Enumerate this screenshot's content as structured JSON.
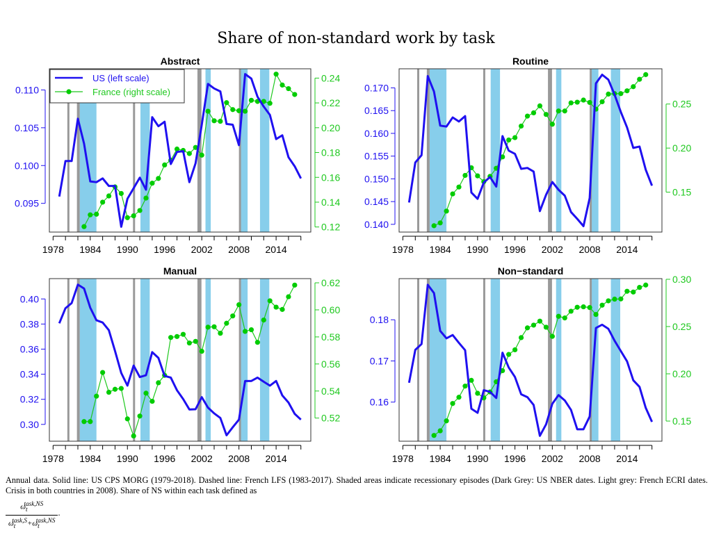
{
  "figure_title": "Share of non-standard work by task",
  "legend": {
    "us": "US (left scale)",
    "france": "France (right scale)"
  },
  "colors": {
    "us": "#1f10f0",
    "france": "#1ec81e",
    "france_point": "#00cc00",
    "us_recession": "#999999",
    "fr_recession": "#87ceeb"
  },
  "caption": {
    "text": "Annual data. Solid line: US CPS MORG (1979-2018). Dashed line: French LFS (1983-2017). Shaded areas indicate recessionary episodes (Dark Grey: US NBER dates. Light grey: French ECRI dates. Crisis in both countries in 2008). Share of NS within each task defined as",
    "formula_num": "ω_t^{task,NS}",
    "formula_den": "ω_t^{task,S} + ω_t^{task,NS}",
    "end": "."
  },
  "chart_data": [
    {
      "type": "line",
      "title": "Abstract",
      "xlim": [
        1977.4,
        2019.6
      ],
      "xticks": [
        1978,
        1984,
        1990,
        1996,
        2002,
        2008,
        2014
      ],
      "ylim_left": [
        0.0912,
        0.1128
      ],
      "yticks_left": [
        "0.095",
        "0.100",
        "0.105",
        "0.110"
      ],
      "ylim_right": [
        0.1159,
        0.2475
      ],
      "yticks_right": [
        "0.12",
        "0.14",
        "0.16",
        "0.18",
        "0.20",
        "0.22",
        "0.24"
      ],
      "legend": "top-left",
      "us": {
        "start": 1979,
        "values": [
          0.0959,
          0.1006,
          0.1006,
          0.1062,
          0.1029,
          0.0979,
          0.0978,
          0.0983,
          0.0973,
          0.0973,
          0.0919,
          0.0956,
          0.097,
          0.0984,
          0.0968,
          0.1064,
          0.1052,
          0.1058,
          0.1002,
          0.1018,
          0.1019,
          0.0978,
          0.1003,
          0.1054,
          0.1108,
          0.1102,
          0.1098,
          0.1055,
          0.1054,
          0.1027,
          0.1121,
          0.1115,
          0.1091,
          0.1078,
          0.1067,
          0.1035,
          0.104,
          0.1011,
          0.0999,
          0.0983
        ]
      },
      "france": {
        "start": 1983,
        "values": [
          0.1203,
          0.1298,
          0.1303,
          0.14,
          0.145,
          0.1523,
          0.147,
          0.1275,
          0.129,
          0.1333,
          0.1433,
          0.1553,
          0.1591,
          0.17,
          0.1738,
          0.1828,
          0.1817,
          0.1792,
          0.1841,
          0.1779,
          0.2133,
          0.2056,
          0.2052,
          0.2202,
          0.2146,
          0.2137,
          0.2133,
          0.2221,
          0.2212,
          0.2212,
          0.2197,
          0.2432,
          0.2344,
          0.2315,
          0.2268
        ]
      }
    },
    {
      "type": "line",
      "title": "Routine",
      "xlim": [
        1977.4,
        2019.6
      ],
      "xticks": [
        1978,
        1984,
        1990,
        1996,
        2002,
        2008,
        2014
      ],
      "ylim_left": [
        0.1383,
        0.1742
      ],
      "yticks_left": [
        "0.140",
        "0.145",
        "0.150",
        "0.155",
        "0.160",
        "0.165",
        "0.170"
      ],
      "ylim_right": [
        0.1047,
        0.29
      ],
      "yticks_right": [
        "0.15",
        "0.20",
        "0.25"
      ],
      "us": {
        "start": 1979,
        "values": [
          0.1448,
          0.1536,
          0.1552,
          0.1726,
          0.1692,
          0.1617,
          0.1615,
          0.1635,
          0.1626,
          0.1638,
          0.147,
          0.1456,
          0.1492,
          0.1504,
          0.1483,
          0.1594,
          0.1562,
          0.1555,
          0.1522,
          0.1524,
          0.1516,
          0.1429,
          0.1465,
          0.1493,
          0.1476,
          0.1463,
          0.1427,
          0.1412,
          0.1396,
          0.1458,
          0.171,
          0.1729,
          0.1718,
          0.1685,
          0.1647,
          0.1613,
          0.1568,
          0.1571,
          0.152,
          0.1485
        ]
      },
      "france": {
        "start": 1983,
        "values": [
          0.1119,
          0.1151,
          0.1285,
          0.148,
          0.1558,
          0.169,
          0.1777,
          0.1685,
          0.1619,
          0.1679,
          0.1771,
          0.19,
          0.2092,
          0.2119,
          0.225,
          0.2363,
          0.24,
          0.2479,
          0.2382,
          0.2271,
          0.2421,
          0.2421,
          0.2513,
          0.2521,
          0.2545,
          0.2518,
          0.2442,
          0.2526,
          0.2613,
          0.2618,
          0.2618,
          0.265,
          0.2697,
          0.2781,
          0.2834
        ]
      }
    },
    {
      "type": "line",
      "title": "Manual",
      "xlim": [
        1977.4,
        2019.6
      ],
      "xticks": [
        1978,
        1984,
        1990,
        1996,
        2002,
        2008,
        2014
      ],
      "ylim_left": [
        0.2866,
        0.4162
      ],
      "yticks_left": [
        "0.30",
        "0.32",
        "0.34",
        "0.36",
        "0.38",
        "0.40"
      ],
      "ylim_right": [
        0.5029,
        0.6231
      ],
      "yticks_right": [
        "0.52",
        "0.54",
        "0.56",
        "0.58",
        "0.60",
        "0.62"
      ],
      "us": {
        "start": 1979,
        "values": [
          0.3806,
          0.3926,
          0.3967,
          0.4114,
          0.4083,
          0.393,
          0.383,
          0.3812,
          0.3751,
          0.3585,
          0.341,
          0.3309,
          0.3469,
          0.3377,
          0.3392,
          0.3576,
          0.353,
          0.3386,
          0.3373,
          0.3272,
          0.3202,
          0.3119,
          0.3121,
          0.3217,
          0.3134,
          0.3088,
          0.3051,
          0.2913,
          0.2977,
          0.3038,
          0.3346,
          0.3346,
          0.3373,
          0.334,
          0.3309,
          0.3346,
          0.3231,
          0.3174,
          0.3084,
          0.3038
        ]
      },
      "france": {
        "start": 1983,
        "values": [
          0.5174,
          0.5174,
          0.5362,
          0.5537,
          0.5391,
          0.5413,
          0.5419,
          0.5194,
          0.5068,
          0.5215,
          0.5384,
          0.5324,
          0.5461,
          0.5516,
          0.5796,
          0.5803,
          0.5819,
          0.5755,
          0.5767,
          0.5694,
          0.5872,
          0.5875,
          0.5827,
          0.5901,
          0.5955,
          0.6038,
          0.5841,
          0.5853,
          0.576,
          0.5925,
          0.6067,
          0.602,
          0.6003,
          0.6097,
          0.6183
        ]
      }
    },
    {
      "type": "line",
      "title": "Non−standard",
      "xlim": [
        1977.4,
        2019.6
      ],
      "xticks": [
        1978,
        1984,
        1990,
        1996,
        2002,
        2008,
        2014
      ],
      "ylim_left": [
        0.1505,
        0.19
      ],
      "yticks_left": [
        "0.16",
        "0.17",
        "0.18"
      ],
      "ylim_right": [
        0.1287,
        0.3007
      ],
      "yticks_right": [
        "0.15",
        "0.20",
        "0.25",
        "0.30"
      ],
      "us": {
        "start": 1979,
        "values": [
          0.1647,
          0.1727,
          0.1741,
          0.1885,
          0.1865,
          0.1773,
          0.1755,
          0.1763,
          0.1744,
          0.1726,
          0.1584,
          0.1574,
          0.1629,
          0.1625,
          0.161,
          0.172,
          0.1684,
          0.1661,
          0.1619,
          0.1612,
          0.1593,
          0.1518,
          0.1546,
          0.1596,
          0.1617,
          0.1604,
          0.1581,
          0.1534,
          0.1534,
          0.1565,
          0.178,
          0.1788,
          0.1778,
          0.1749,
          0.1724,
          0.1699,
          0.1653,
          0.1637,
          0.1586,
          0.1552
        ]
      },
      "france": {
        "start": 1983,
        "values": [
          0.1348,
          0.1397,
          0.1502,
          0.1686,
          0.1752,
          0.187,
          0.1931,
          0.1794,
          0.1745,
          0.1808,
          0.1916,
          0.2033,
          0.2205,
          0.2254,
          0.2383,
          0.2486,
          0.2515,
          0.2557,
          0.2493,
          0.2396,
          0.2608,
          0.2591,
          0.2662,
          0.2704,
          0.2709,
          0.2701,
          0.2628,
          0.2726,
          0.2772,
          0.279,
          0.2792,
          0.2873,
          0.2865,
          0.2914,
          0.2939
        ]
      }
    }
  ],
  "recessions": {
    "us": [
      [
        1980.3,
        1980.6
      ],
      [
        1981.85,
        1982.3
      ],
      [
        1990.9,
        1991.2
      ],
      [
        2001.3,
        2001.95
      ],
      [
        2008.0,
        2008.3
      ]
    ],
    "france": [
      [
        1982.3,
        1985.0
      ],
      [
        1992.1,
        1993.6
      ],
      [
        2002.6,
        2003.45
      ],
      [
        2008.3,
        2009.4
      ],
      [
        2011.4,
        2012.9
      ]
    ]
  }
}
